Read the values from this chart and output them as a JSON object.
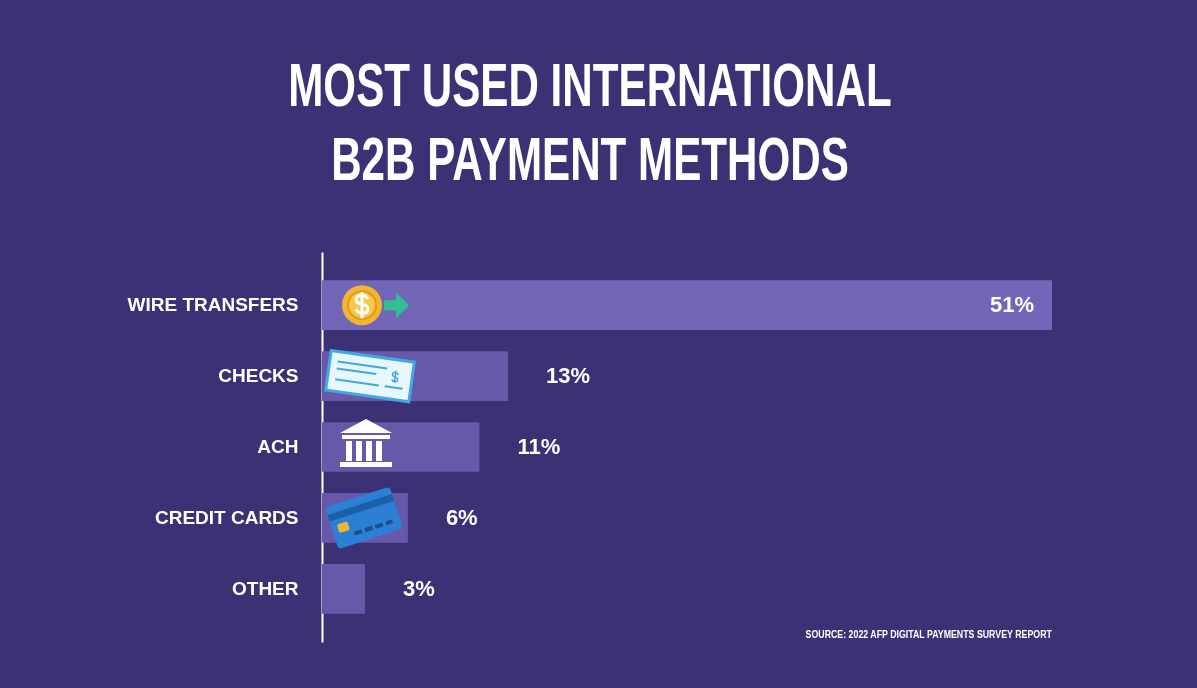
{
  "chart_data": {
    "type": "bar",
    "orientation": "horizontal",
    "title": "MOST USED INTERNATIONAL B2B PAYMENT METHODS",
    "categories": [
      "WIRE TRANSFERS",
      "CHECKS",
      "ACH",
      "CREDIT CARDS",
      "OTHER"
    ],
    "values": [
      51,
      13,
      11,
      6,
      3
    ],
    "value_labels": [
      "51%",
      "13%",
      "11%",
      "6%",
      "3%"
    ],
    "colors": [
      "#7366b8",
      "#6858aa",
      "#6858aa",
      "#6858aa",
      "#6858aa"
    ],
    "annotations": [
      "SOURCE:  2022 AFP DIGITAL PAYMENTS SURVEY REPORT"
    ]
  }
}
